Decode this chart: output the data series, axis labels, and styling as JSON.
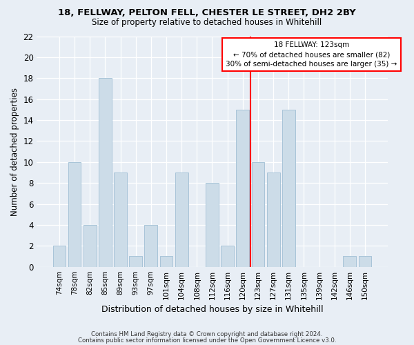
{
  "title1": "18, FELLWAY, PELTON FELL, CHESTER LE STREET, DH2 2BY",
  "title2": "Size of property relative to detached houses in Whitehill",
  "xlabel": "Distribution of detached houses by size in Whitehill",
  "ylabel": "Number of detached properties",
  "categories": [
    "74sqm",
    "78sqm",
    "82sqm",
    "85sqm",
    "89sqm",
    "93sqm",
    "97sqm",
    "101sqm",
    "104sqm",
    "108sqm",
    "112sqm",
    "116sqm",
    "120sqm",
    "123sqm",
    "127sqm",
    "131sqm",
    "135sqm",
    "139sqm",
    "142sqm",
    "146sqm",
    "150sqm"
  ],
  "values": [
    2,
    10,
    4,
    18,
    9,
    1,
    4,
    1,
    9,
    0,
    8,
    2,
    15,
    10,
    9,
    15,
    0,
    0,
    0,
    1,
    1
  ],
  "bar_color": "#ccdce8",
  "bar_edge_color": "#a8c4d8",
  "red_line_x": 12.5,
  "annotation_title": "18 FELLWAY: 123sqm",
  "annotation_line1": "← 70% of detached houses are smaller (82)",
  "annotation_line2": "30% of semi-detached houses are larger (35) →",
  "ylim": [
    0,
    22
  ],
  "yticks": [
    0,
    2,
    4,
    6,
    8,
    10,
    12,
    14,
    16,
    18,
    20,
    22
  ],
  "footer1": "Contains HM Land Registry data © Crown copyright and database right 2024.",
  "footer2": "Contains public sector information licensed under the Open Government Licence v3.0.",
  "background_color": "#e8eef5"
}
